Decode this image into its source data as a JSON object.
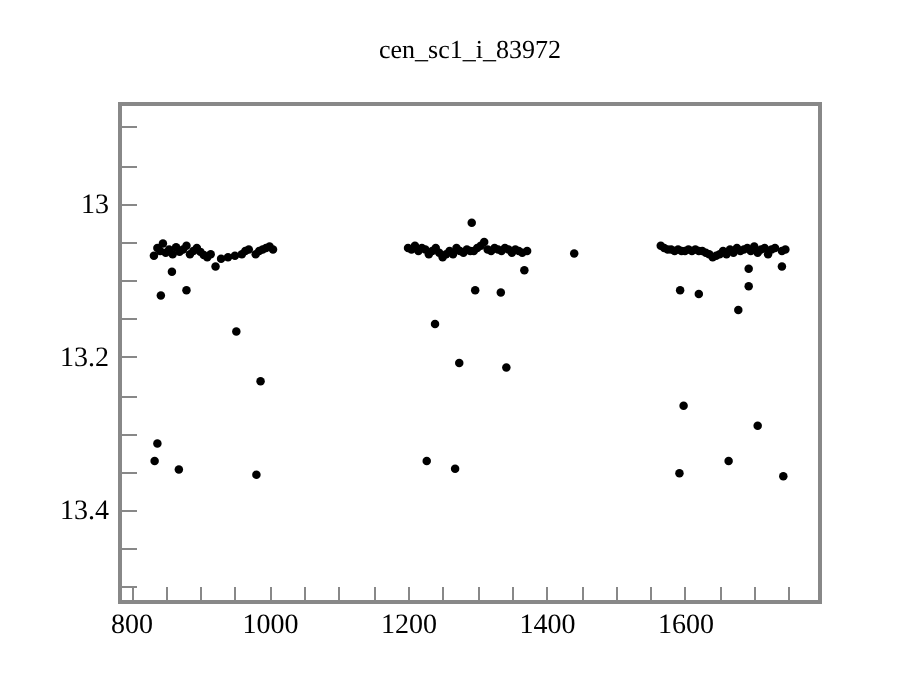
{
  "chart_data": {
    "type": "scatter",
    "title": "cen_sc1_i_83972",
    "marker": "circle",
    "xlim": [
      784,
      1795
    ],
    "ylim": [
      13.52,
      12.87
    ],
    "xticks": [
      800,
      {
        "value": 850,
        "label": null
      },
      {
        "value": 900,
        "label": null
      },
      {
        "value": 950,
        "label": null
      },
      1000,
      {
        "value": 1050,
        "label": null
      },
      {
        "value": 1100,
        "label": null
      },
      {
        "value": 1150,
        "label": null
      },
      1200,
      {
        "value": 1250,
        "label": null
      },
      {
        "value": 1300,
        "label": null
      },
      {
        "value": 1350,
        "label": null
      },
      1400,
      {
        "value": 1450,
        "label": null
      },
      {
        "value": 1500,
        "label": null
      },
      {
        "value": 1550,
        "label": null
      },
      1600,
      {
        "value": 1650,
        "label": null
      },
      {
        "value": 1700,
        "label": null
      },
      {
        "value": 1750,
        "label": null
      }
    ],
    "yticks": [
      {
        "value": 12.9,
        "label": null
      },
      {
        "value": 12.95,
        "label": null
      },
      13,
      {
        "value": 13.05,
        "label": null
      },
      {
        "value": 13.1,
        "label": null
      },
      {
        "value": 13.15,
        "label": null
      },
      13.2,
      {
        "value": 13.25,
        "label": null
      },
      {
        "value": 13.3,
        "label": null
      },
      {
        "value": 13.35,
        "label": null
      },
      13.4,
      {
        "value": 13.45,
        "label": null
      },
      {
        "value": 13.5,
        "label": null
      }
    ],
    "grid": false,
    "series": [
      {
        "color": "#000000",
        "x": [
          833,
          838,
          842,
          846,
          850,
          855,
          860,
          865,
          870,
          875,
          880,
          885,
          890,
          895,
          900,
          905,
          910,
          915,
          930,
          940,
          950,
          960,
          965,
          970,
          980,
          985,
          990,
          995,
          1000,
          1005,
          1200,
          1205,
          1210,
          1215,
          1220,
          1225,
          1230,
          1235,
          1240,
          1245,
          1250,
          1255,
          1260,
          1265,
          1270,
          1275,
          1280,
          1285,
          1290,
          1295,
          1300,
          1305,
          1310,
          1315,
          1320,
          1325,
          1330,
          1335,
          1340,
          1345,
          1350,
          1355,
          1360,
          1365,
          1372,
          1565,
          1570,
          1575,
          1580,
          1585,
          1590,
          1595,
          1600,
          1605,
          1610,
          1615,
          1620,
          1625,
          1630,
          1635,
          1640,
          1645,
          1650,
          1655,
          1660,
          1665,
          1670,
          1675,
          1680,
          1685,
          1690,
          1695,
          1700,
          1705,
          1710,
          1715,
          1720,
          1725,
          1730,
          1740,
          1745,
          834,
          838,
          843,
          859,
          869,
          880,
          922,
          952,
          987,
          981,
          1227,
          1239,
          1268,
          1274,
          1292,
          1297,
          1334,
          1342,
          1368,
          1440,
          1592,
          1593,
          1598,
          1620,
          1663,
          1677,
          1692,
          1705,
          1740,
          1742,
          1692
        ],
        "values": [
          13.068,
          13.058,
          13.062,
          13.052,
          13.064,
          13.06,
          13.066,
          13.057,
          13.063,
          13.06,
          13.055,
          13.066,
          13.062,
          13.058,
          13.063,
          13.067,
          13.07,
          13.066,
          13.072,
          13.07,
          13.068,
          13.066,
          13.062,
          13.06,
          13.066,
          13.062,
          13.06,
          13.058,
          13.056,
          13.06,
          13.058,
          13.06,
          13.055,
          13.062,
          13.058,
          13.06,
          13.066,
          13.062,
          13.058,
          13.064,
          13.07,
          13.066,
          13.062,
          13.066,
          13.058,
          13.062,
          13.064,
          13.06,
          13.062,
          13.062,
          13.058,
          13.055,
          13.05,
          13.06,
          13.062,
          13.058,
          13.06,
          13.062,
          13.058,
          13.06,
          13.064,
          13.06,
          13.062,
          13.064,
          13.062,
          13.055,
          13.058,
          13.06,
          13.06,
          13.062,
          13.06,
          13.062,
          13.062,
          13.06,
          13.062,
          13.06,
          13.062,
          13.062,
          13.064,
          13.066,
          13.07,
          13.068,
          13.066,
          13.062,
          13.066,
          13.06,
          13.064,
          13.058,
          13.062,
          13.06,
          13.058,
          13.062,
          13.056,
          13.064,
          13.06,
          13.058,
          13.066,
          13.06,
          13.058,
          13.062,
          13.06,
          13.336,
          13.313,
          13.12,
          13.089,
          13.347,
          13.113,
          13.082,
          13.167,
          13.232,
          13.354,
          13.336,
          13.157,
          13.346,
          13.208,
          13.025,
          13.113,
          13.116,
          13.214,
          13.087,
          13.065,
          13.352,
          13.113,
          13.264,
          13.118,
          13.336,
          13.139,
          13.108,
          13.29,
          13.082,
          13.356,
          13.085
        ]
      }
    ]
  }
}
